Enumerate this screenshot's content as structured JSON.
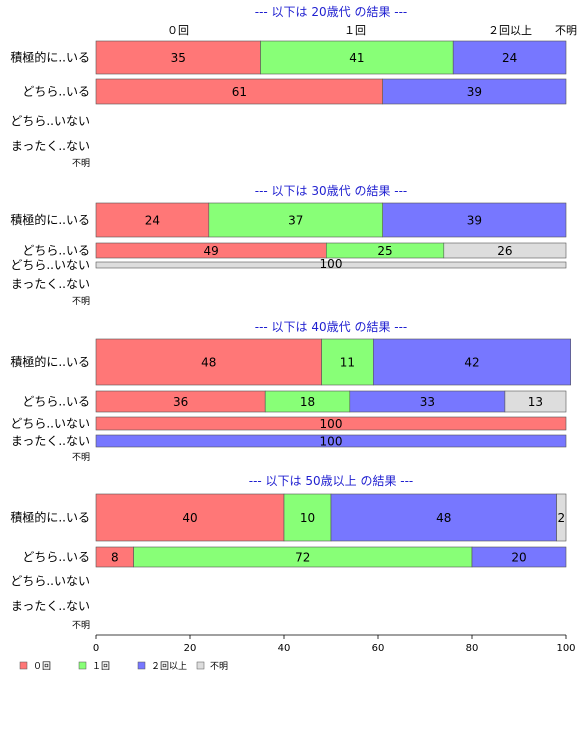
{
  "chart_data": {
    "type": "bar",
    "orientation": "horizontal",
    "stacked": true,
    "xlim": [
      0,
      100
    ],
    "x_ticks": [
      "0",
      "20",
      "40",
      "60",
      "80",
      "100"
    ],
    "top_labels": [
      "０回",
      "１回",
      "２回以上",
      "不明"
    ],
    "legend": [
      {
        "name": "０回",
        "color": "#ff7777"
      },
      {
        "name": "１回",
        "color": "#88ff77"
      },
      {
        "name": "２回以上",
        "color": "#7777ff"
      },
      {
        "name": "不明",
        "color": "#dddddd"
      }
    ],
    "colors": [
      "#ff7777",
      "#88ff77",
      "#7777ff",
      "#dddddd"
    ],
    "panels": [
      {
        "title": "--- 以下は 20歳代 の結果 ---",
        "rows": [
          {
            "label": "積極的に..いる",
            "values": [
              35,
              41,
              24,
              0
            ]
          },
          {
            "label": "どちら..いる",
            "values": [
              61,
              0,
              39,
              0
            ]
          },
          {
            "label": "どちら..いない",
            "values": [
              0,
              0,
              0,
              0
            ]
          },
          {
            "label": "まったく..ない",
            "values": [
              0,
              0,
              0,
              0
            ]
          },
          {
            "label": "不明",
            "values": [
              0,
              0,
              0,
              0
            ]
          }
        ]
      },
      {
        "title": "--- 以下は 30歳代 の結果 ---",
        "rows": [
          {
            "label": "積極的に..いる",
            "values": [
              24,
              37,
              39,
              0
            ]
          },
          {
            "label": "どちら..いる",
            "values": [
              49,
              25,
              0,
              26
            ]
          },
          {
            "label": "どちら..いない",
            "values": [
              0,
              0,
              0,
              100
            ]
          },
          {
            "label": "まったく..ない",
            "values": [
              0,
              0,
              0,
              0
            ]
          },
          {
            "label": "不明",
            "values": [
              0,
              0,
              0,
              0
            ]
          }
        ]
      },
      {
        "title": "--- 以下は 40歳代 の結果 ---",
        "rows": [
          {
            "label": "積極的に..いる",
            "values": [
              48,
              11,
              42,
              0
            ]
          },
          {
            "label": "どちら..いる",
            "values": [
              36,
              18,
              33,
              13
            ]
          },
          {
            "label": "どちら..いない",
            "values": [
              100,
              0,
              0,
              0
            ]
          },
          {
            "label": "まったく..ない",
            "values": [
              0,
              0,
              100,
              0
            ]
          },
          {
            "label": "不明",
            "values": [
              0,
              0,
              0,
              0
            ]
          }
        ]
      },
      {
        "title": "--- 以下は 50歳以上 の結果 ---",
        "rows": [
          {
            "label": "積極的に..いる",
            "values": [
              40,
              10,
              48,
              2
            ]
          },
          {
            "label": "どちら..いる",
            "values": [
              8,
              72,
              20,
              0
            ]
          },
          {
            "label": "どちら..いない",
            "values": [
              0,
              0,
              0,
              0
            ]
          },
          {
            "label": "まったく..ない",
            "values": [
              0,
              0,
              0,
              0
            ]
          },
          {
            "label": "不明",
            "values": [
              0,
              0,
              0,
              0
            ]
          }
        ]
      }
    ]
  }
}
